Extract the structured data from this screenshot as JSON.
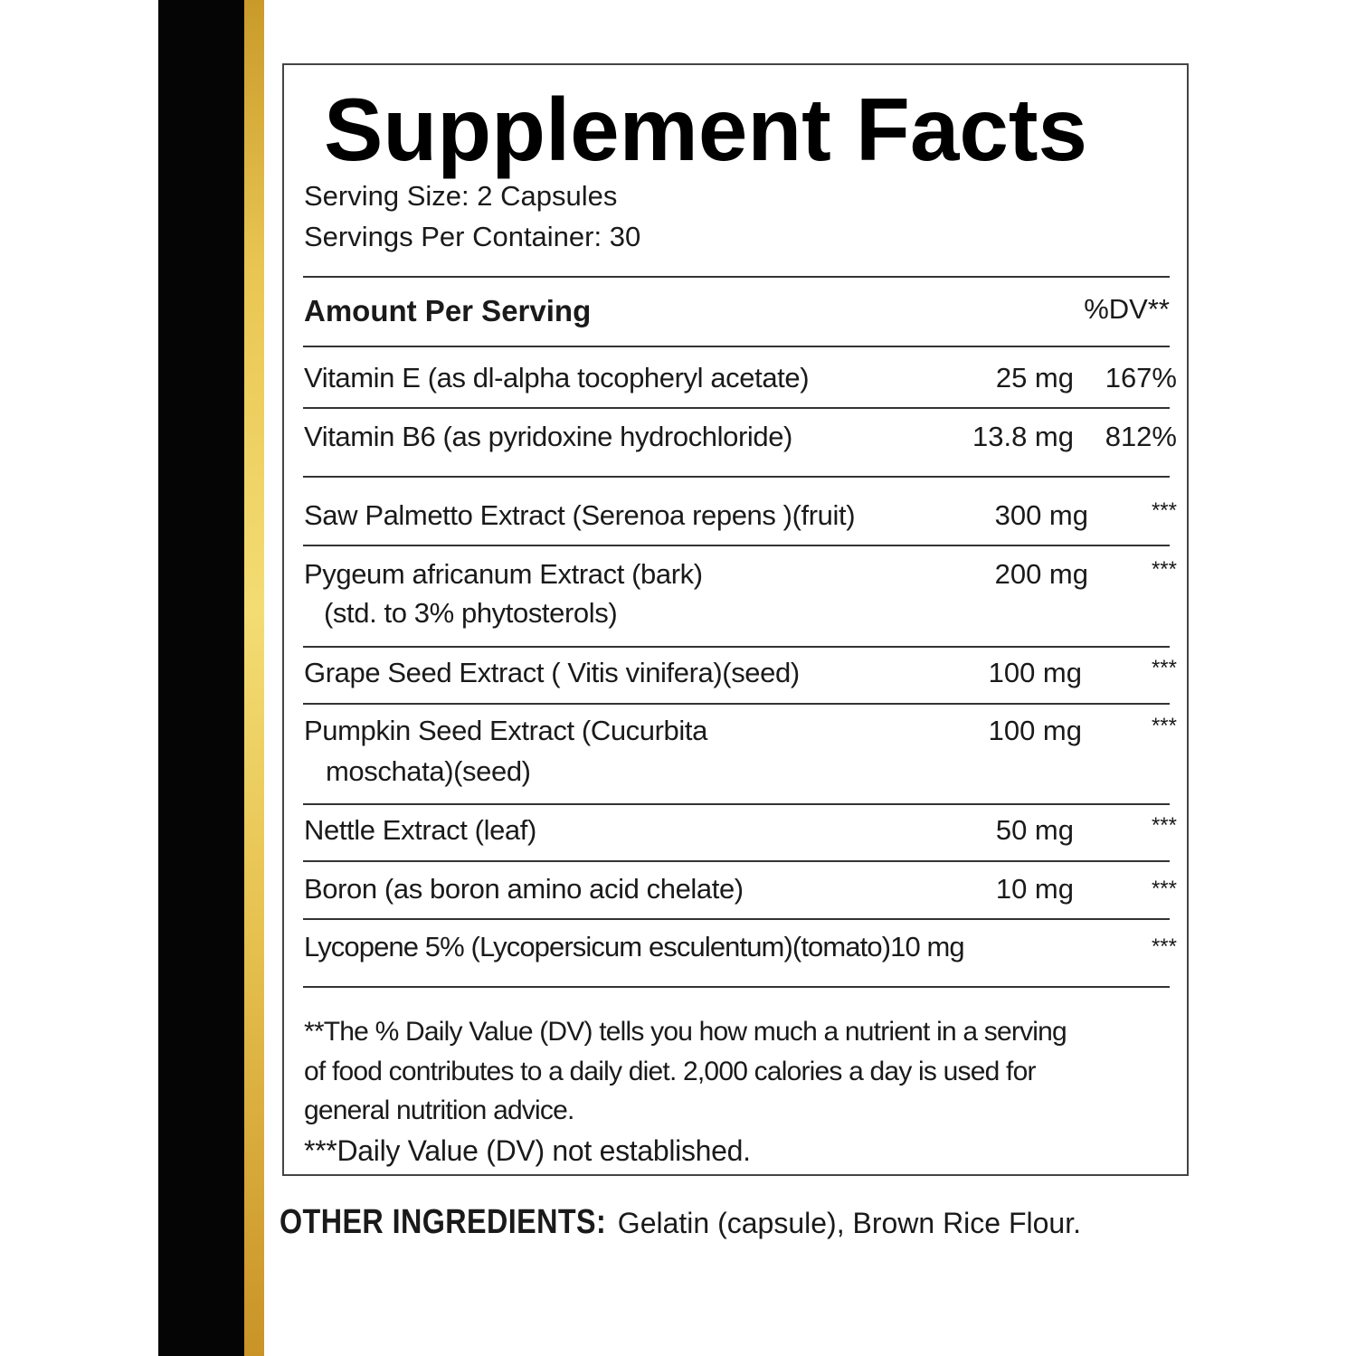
{
  "title": "Supplement Facts",
  "serving_size": "Serving Size:    2 Capsules",
  "servings_per_container": "Servings Per Container:  30",
  "header": {
    "amount": "Amount Per Serving",
    "dv": "%DV**"
  },
  "rows": [
    {
      "name": "Vitamin E (as dl-alpha tocopheryl acetate)",
      "amount": "25 mg",
      "dv": "167%"
    },
    {
      "name": "Vitamin B6 (as pyridoxine hydrochloride)",
      "amount": "13.8 mg",
      "dv": "812%"
    },
    {
      "name": "Saw Palmetto Extract (Serenoa repens )(fruit)",
      "amount": "300 mg",
      "dv": "***"
    },
    {
      "name": "Pygeum africanum  Extract (bark)",
      "name2": "(std. to 3% phytosterols)",
      "amount": "200 mg",
      "dv": "***"
    },
    {
      "name": "Grape Seed Extract ( Vitis vinifera)(seed)",
      "amount": "100 mg",
      "dv": "***"
    },
    {
      "name": "Pumpkin Seed Extract (Cucurbita",
      "name2": "moschata)(seed)",
      "amount": "100 mg",
      "dv": "***"
    },
    {
      "name": "Nettle Extract (leaf)",
      "amount": "50 mg",
      "dv": "***"
    },
    {
      "name": "Boron (as boron amino acid chelate)",
      "amount": "10 mg",
      "dv": "***"
    },
    {
      "name": "Lycopene 5% (Lycopersicum esculentum)(tomato)10 mg",
      "dv": "***"
    }
  ],
  "footnotes": [
    "**The % Daily Value (DV) tells you how much a nutrient in a serving",
    "of food contributes to a daily diet. 2,000 calories a day is used for",
    "general nutrition advice.",
    "***Daily Value (DV) not established."
  ],
  "other_ingredients": {
    "label": "OTHER INGREDIENTS:",
    "value": " Gelatin (capsule), Brown Rice Flour."
  },
  "colors": {
    "stripe_black": "#050505",
    "stripe_gold": "#e9c653"
  }
}
